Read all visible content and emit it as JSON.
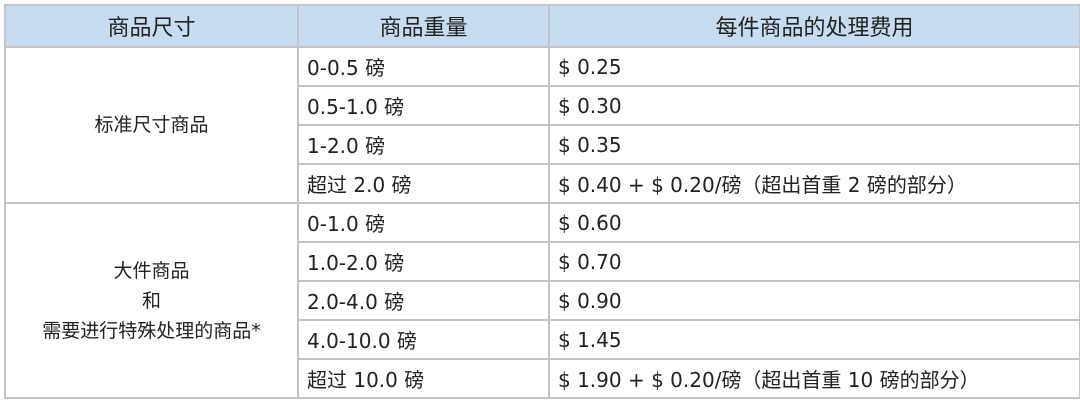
{
  "headers": [
    "商品尺寸",
    "商品重量",
    "每件商品的处理费用"
  ],
  "groups": [
    {
      "size_lines": [
        "标准尺寸商品"
      ],
      "rows": [
        {
          "weight": "0-0.5 磅",
          "fee": "$ 0.25"
        },
        {
          "weight": "0.5-1.0 磅",
          "fee": "$ 0.30"
        },
        {
          "weight": "1-2.0 磅",
          "fee": "$ 0.35"
        },
        {
          "weight": "超过 2.0 磅",
          "fee": "$ 0.40 + $ 0.20/磅（超出首重 2 磅的部分）"
        }
      ]
    },
    {
      "size_lines": [
        "大件商品",
        "和",
        "需要进行特殊处理的商品*"
      ],
      "rows": [
        {
          "weight": "0-1.0 磅",
          "fee": "$ 0.60"
        },
        {
          "weight": "1.0-2.0 磅",
          "fee": "$ 0.70"
        },
        {
          "weight": "2.0-4.0 磅",
          "fee": "$ 0.90"
        },
        {
          "weight": "4.0-10.0 磅",
          "fee": "$ 1.45"
        },
        {
          "weight": "超过 10.0 磅",
          "fee": "$ 1.90 + $ 0.20/磅（超出首重 10 磅的部分）"
        }
      ]
    }
  ],
  "colors": {
    "header_bg": "#c6dcf0",
    "border": "#c4c4c4"
  }
}
